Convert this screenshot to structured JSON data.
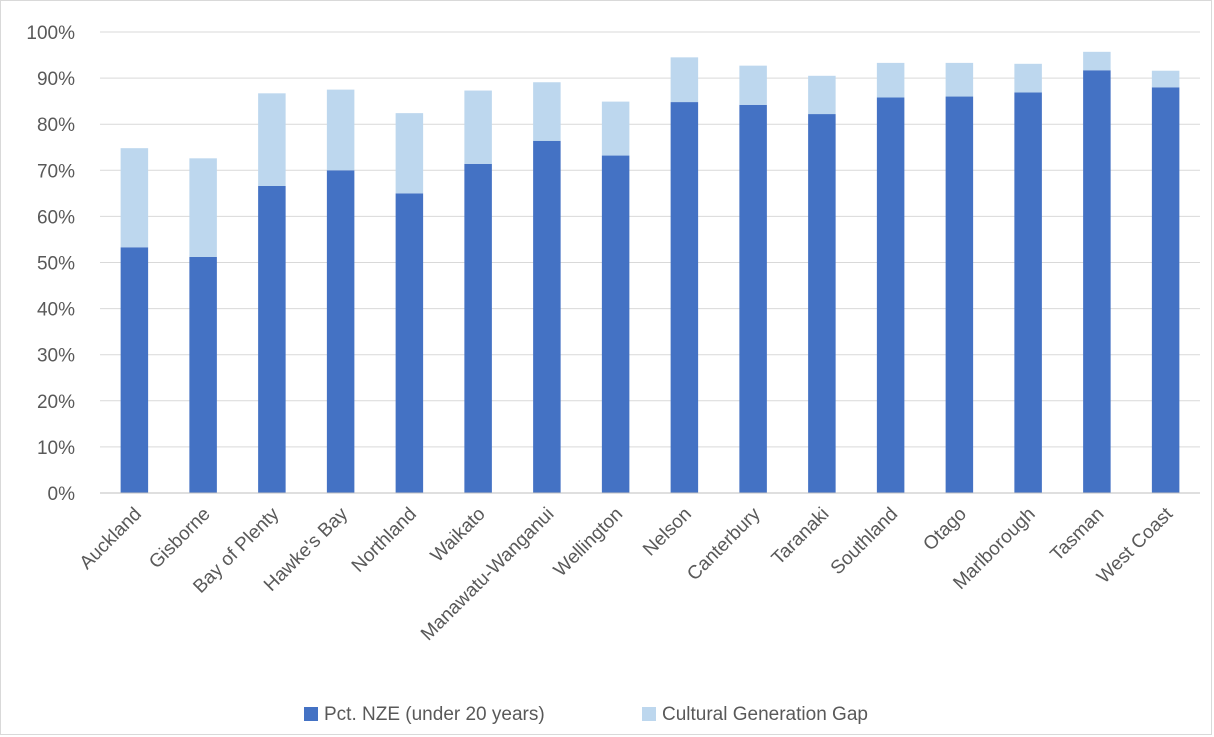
{
  "chart_data": {
    "type": "bar",
    "stacked": true,
    "categories": [
      "Auckland",
      "Gisborne",
      "Bay of Plenty",
      "Hawke's Bay",
      "Northland",
      "Waikato",
      "Manawatu-Wanganui",
      "Wellington",
      "Nelson",
      "Canterbury",
      "Taranaki",
      "Southland",
      "Otago",
      "Marlborough",
      "Tasman",
      "West Coast"
    ],
    "series": [
      {
        "name": "Pct. NZE (under 20 years)",
        "color": "#4472c4",
        "values": [
          53.3,
          51.2,
          66.6,
          70.0,
          65.0,
          71.4,
          76.4,
          73.2,
          84.8,
          84.2,
          82.2,
          85.8,
          86.0,
          86.9,
          91.7,
          88.0
        ]
      },
      {
        "name": "Cultural Generation Gap",
        "color": "#bdd7ee",
        "values": [
          21.5,
          21.4,
          20.1,
          17.5,
          17.4,
          15.9,
          12.7,
          11.7,
          9.7,
          8.5,
          8.3,
          7.5,
          7.3,
          6.2,
          4.0,
          3.6
        ]
      }
    ],
    "y_ticks": [
      "0%",
      "10%",
      "20%",
      "30%",
      "40%",
      "50%",
      "60%",
      "70%",
      "80%",
      "90%",
      "100%"
    ],
    "ylim": [
      0,
      100
    ],
    "grid": true,
    "legend": "bottom",
    "title": "",
    "xlabel": "",
    "ylabel": ""
  }
}
